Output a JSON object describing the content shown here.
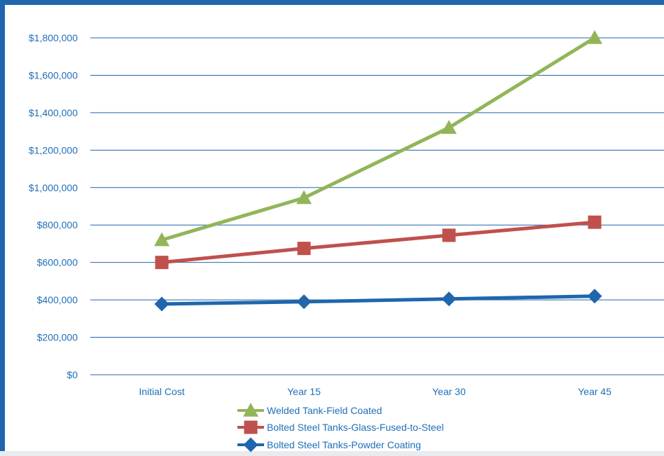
{
  "chart_data": {
    "type": "line",
    "categories": [
      "Initial Cost",
      "Year 15",
      "Year 30",
      "Year 45"
    ],
    "ylim": [
      0,
      1800000
    ],
    "yticks": [
      0,
      200000,
      400000,
      600000,
      800000,
      1000000,
      1200000,
      1400000,
      1600000,
      1800000
    ],
    "ytick_labels": [
      "$0",
      "$200,000",
      "$400,000",
      "$600,000",
      "$800,000",
      "$1,000,000",
      "$1,200,000",
      "$1,400,000",
      "$1,600,000",
      "$1,800,000"
    ],
    "grid": true,
    "legend_position": "bottom",
    "title": "",
    "xlabel": "",
    "ylabel": "",
    "series": [
      {
        "name": "Welded Tank-Field Coated",
        "values": [
          720000,
          945000,
          1320000,
          1800000
        ],
        "color": "#92b558",
        "marker": "triangle"
      },
      {
        "name": "Bolted Steel Tanks-Glass-Fused-to-Steel",
        "values": [
          600000,
          675000,
          745000,
          815000
        ],
        "color": "#c0504d",
        "marker": "square"
      },
      {
        "name": "Bolted Steel Tanks-Powder Coating",
        "values": [
          378000,
          390000,
          405000,
          420000
        ],
        "color": "#1f66ad",
        "marker": "diamond"
      }
    ]
  }
}
